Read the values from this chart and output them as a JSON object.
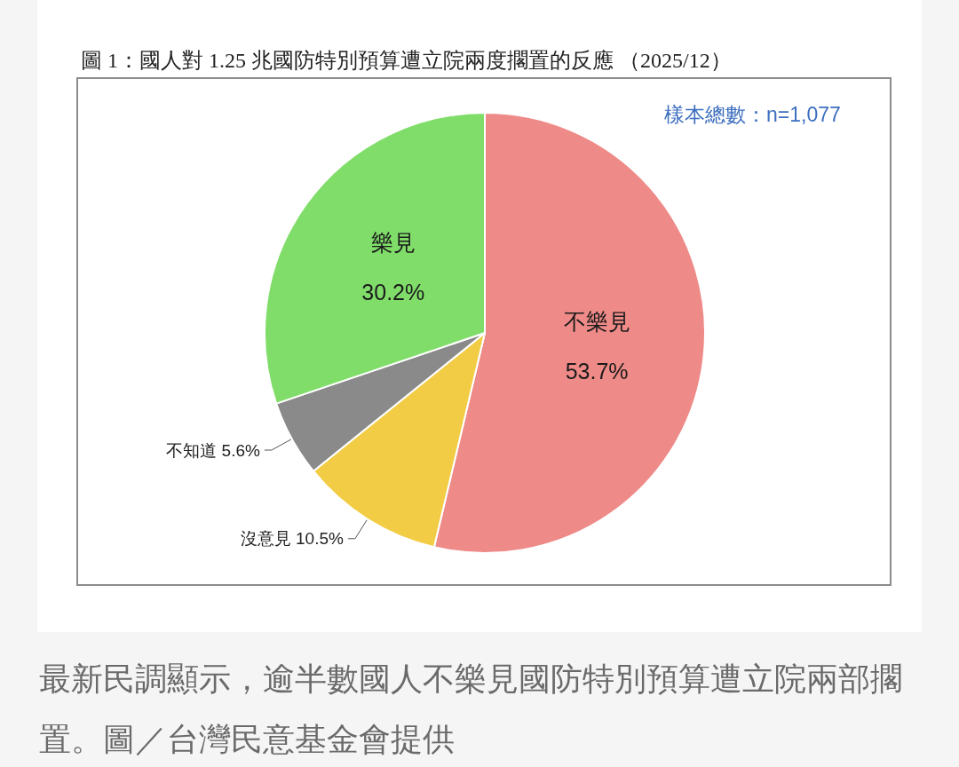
{
  "chart_data": {
    "type": "pie",
    "title": "圖 1：國人對 1.25 兆國防特別預算遭立院兩度擱置的反應 （2025/12）",
    "categories": [
      "不樂見",
      "沒意見",
      "不知道",
      "樂見"
    ],
    "values": [
      53.7,
      10.5,
      5.6,
      30.2
    ],
    "value_labels": [
      "53.7%",
      "10.5%",
      "5.6%",
      "30.2%"
    ],
    "colors": [
      "#ee8a87",
      "#f2cc44",
      "#8a8a8a",
      "#80dd6a"
    ],
    "annotations": [
      "樣本總數：n=1,077",
      "最新民調顯示，逾半數國人不樂見國防特別預算遭立院兩部擱置。圖／台灣民意基金會提供"
    ]
  }
}
